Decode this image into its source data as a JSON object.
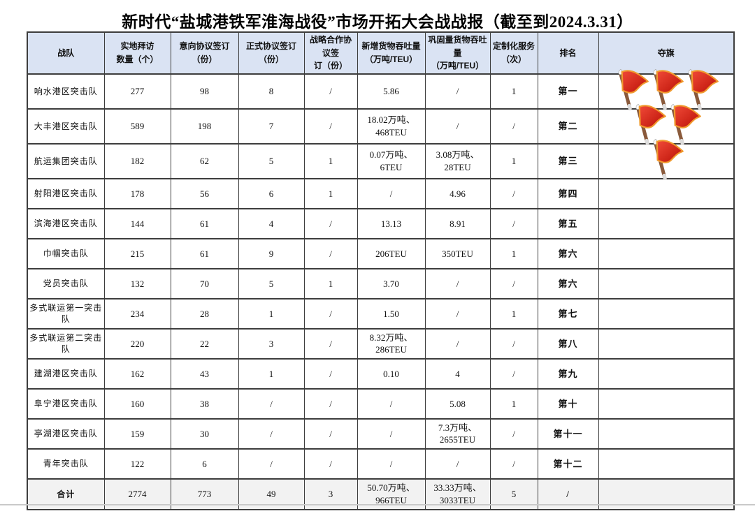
{
  "title": "新时代“盐城港铁军淮海战役”市场开拓大会战战报（截至到2024.3.31）",
  "columns": [
    "战队",
    "实地拜访\n数量（个）",
    "意向协议签订\n（份）",
    "正式协议签订\n（份）",
    "战略合作协议签\n订（份）",
    "新增货物吞吐量\n（万吨/TEU）",
    "巩固量货物吞吐量\n（万吨/TEU）",
    "定制化服务\n（次）",
    "排名",
    "夺旗"
  ],
  "rows": [
    {
      "team": "响水港区突击队",
      "values": [
        "277",
        "98",
        "8",
        "/",
        "5.86",
        "/",
        "1"
      ],
      "rank": "第一",
      "flags": 3
    },
    {
      "team": "大丰港区突击队",
      "values": [
        "589",
        "198",
        "7",
        "/",
        "18.02万吨、\n468TEU",
        "/",
        "/"
      ],
      "rank": "第二",
      "flags": 2
    },
    {
      "team": "航运集团突击队",
      "values": [
        "182",
        "62",
        "5",
        "1",
        "0.07万吨、\n6TEU",
        "3.08万吨、\n28TEU",
        "1"
      ],
      "rank": "第三",
      "flags": 1
    },
    {
      "team": "射阳港区突击队",
      "values": [
        "178",
        "56",
        "6",
        "1",
        "/",
        "4.96",
        "/"
      ],
      "rank": "第四",
      "flags": 0
    },
    {
      "team": "滨海港区突击队",
      "values": [
        "144",
        "61",
        "4",
        "/",
        "13.13",
        "8.91",
        "/"
      ],
      "rank": "第五",
      "flags": 0
    },
    {
      "team": "巾帼突击队",
      "values": [
        "215",
        "61",
        "9",
        "/",
        "206TEU",
        "350TEU",
        "1"
      ],
      "rank": "第六",
      "flags": 0
    },
    {
      "team": "党员突击队",
      "values": [
        "132",
        "70",
        "5",
        "1",
        "3.70",
        "/",
        "/"
      ],
      "rank": "第六",
      "flags": 0
    },
    {
      "team": "多式联运第一突击队",
      "values": [
        "234",
        "28",
        "1",
        "/",
        "1.50",
        "/",
        "1"
      ],
      "rank": "第七",
      "flags": 0
    },
    {
      "team": "多式联运第二突击队",
      "values": [
        "220",
        "22",
        "3",
        "/",
        "8.32万吨、\n286TEU",
        "/",
        "/"
      ],
      "rank": "第八",
      "flags": 0
    },
    {
      "team": "建湖港区突击队",
      "values": [
        "162",
        "43",
        "1",
        "/",
        "0.10",
        "4",
        "/"
      ],
      "rank": "第九",
      "flags": 0
    },
    {
      "team": "阜宁港区突击队",
      "values": [
        "160",
        "38",
        "/",
        "/",
        "/",
        "5.08",
        "1"
      ],
      "rank": "第十",
      "flags": 0
    },
    {
      "team": "亭湖港区突击队",
      "values": [
        "159",
        "30",
        "/",
        "/",
        "/",
        "7.3万吨、\n2655TEU",
        "/"
      ],
      "rank": "第十一",
      "flags": 0
    },
    {
      "team": "青年突击队",
      "values": [
        "122",
        "6",
        "/",
        "/",
        "/",
        "/",
        "/"
      ],
      "rank": "第十二",
      "flags": 0
    }
  ],
  "total": {
    "team": "合计",
    "values": [
      "2774",
      "773",
      "49",
      "3",
      "50.70万吨、\n966TEU",
      "33.33万吨、\n3033TEU",
      "5"
    ],
    "rank": "/",
    "flags": 0
  },
  "colors": {
    "header_bg": "#dae3f3",
    "total_bg": "#f2f2f2",
    "border": "#3d3d3d",
    "flag_red": "#d9251c",
    "flag_red_light": "#f04a38",
    "flag_trim": "#f09a2e",
    "flag_pole": "#8a5a3b"
  }
}
